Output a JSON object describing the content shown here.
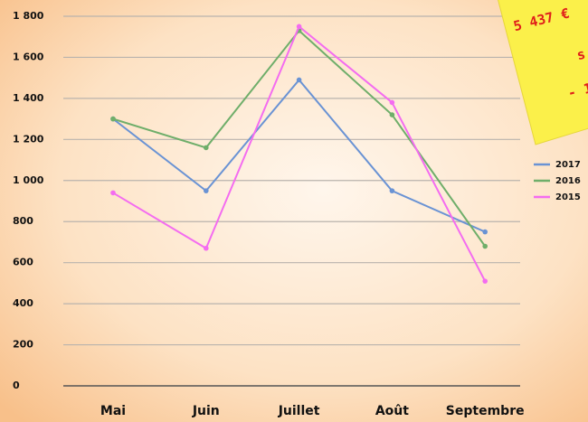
{
  "chart_data": {
    "type": "line",
    "categories": [
      "Mai",
      "Juin",
      "Juillet",
      "Août",
      "Septembre"
    ],
    "series": [
      {
        "name": "2017",
        "color": "#6a93d4",
        "values": [
          1300,
          950,
          1490,
          950,
          750
        ]
      },
      {
        "name": "2016",
        "color": "#6fae6a",
        "values": [
          1300,
          1160,
          1730,
          1320,
          680
        ]
      },
      {
        "name": "2015",
        "color": "#f46cf0",
        "values": [
          940,
          670,
          1750,
          1380,
          510
        ]
      }
    ],
    "ylim": [
      0,
      1800
    ],
    "yticks": [
      0,
      200,
      400,
      600,
      800,
      {
        "value": 1000,
        "label": "1 000"
      },
      {
        "value": 1200,
        "label": "1 200"
      },
      {
        "value": 1400,
        "label": "1 400"
      },
      {
        "value": 1600,
        "label": "1 600"
      },
      {
        "value": 1800,
        "label": "1 800"
      }
    ],
    "grid": true,
    "legend": "right",
    "annotations": [
      "5 437 €",
      "s",
      "- 1"
    ]
  }
}
